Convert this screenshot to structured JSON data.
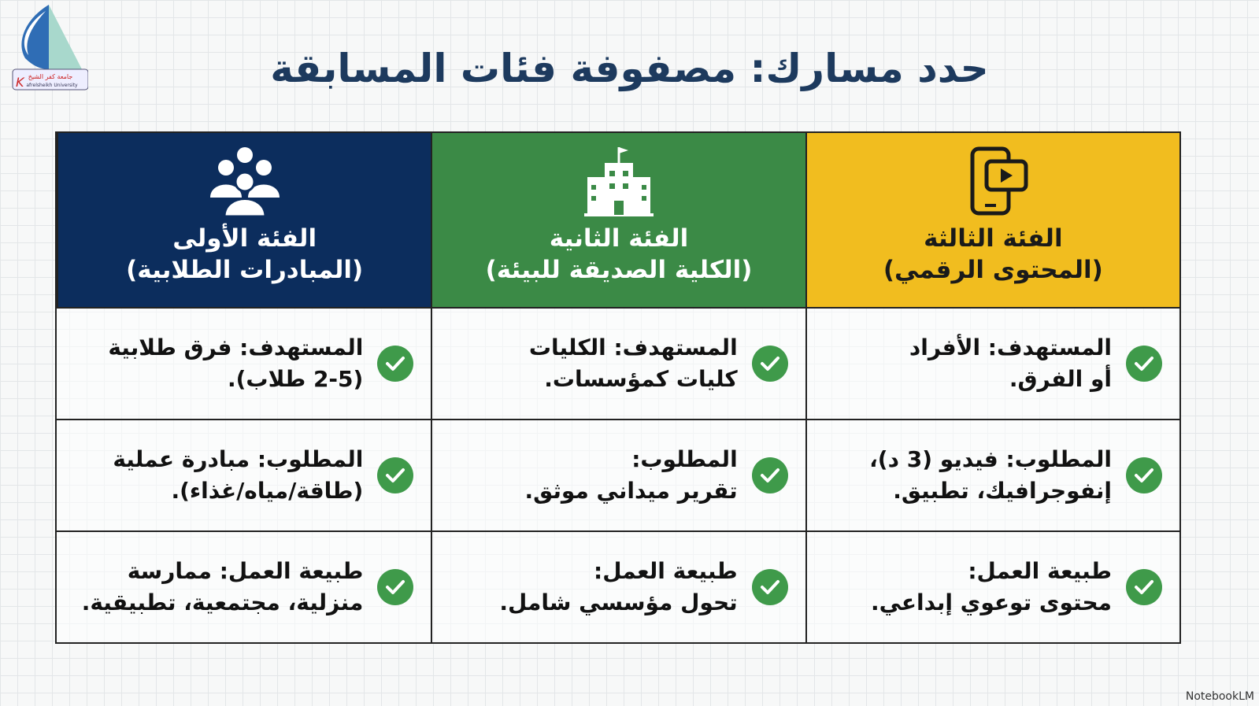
{
  "logo": {
    "text_ar": "جامعة كفر الشيخ",
    "text_en": "Kafrelsheikh University"
  },
  "title": "حدد مسارك: مصفوفة فئات المسابقة",
  "columns": [
    {
      "name": "الفئة الثالثة",
      "sub": "(المحتوى الرقمي)",
      "icon": "mobile-video-icon",
      "color": "#f1bd1f",
      "rows": [
        [
          "المستهدف: الأفراد",
          "أو الفرق."
        ],
        [
          "المطلوب: فيديو (3 د)،",
          "إنفوجرافيك، تطبيق."
        ],
        [
          "طبيعة العمل:",
          "محتوى توعوي إبداعي."
        ]
      ]
    },
    {
      "name": "الفئة الثانية",
      "sub": "(الكلية الصديقة للبيئة)",
      "icon": "school-building-icon",
      "color": "#3b8a46",
      "rows": [
        [
          "المستهدف: الكليات",
          "كليات كمؤسسات."
        ],
        [
          "المطلوب:",
          "تقرير ميداني موثق."
        ],
        [
          "طبيعة العمل:",
          "تحول مؤسسي شامل."
        ]
      ]
    },
    {
      "name": "الفئة الأولى",
      "sub": "(المبادرات الطلابية)",
      "icon": "group-people-icon",
      "color": "#0c2d5d",
      "rows": [
        [
          "المستهدف: فرق طلابية",
          "(2-5 طلاب)."
        ],
        [
          "المطلوب: مبادرة عملية",
          "(طاقة/مياه/غذاء)."
        ],
        [
          "طبيعة العمل: ممارسة",
          "منزلية، مجتمعية، تطبيقية."
        ]
      ]
    }
  ],
  "watermark": "NotebookLM"
}
